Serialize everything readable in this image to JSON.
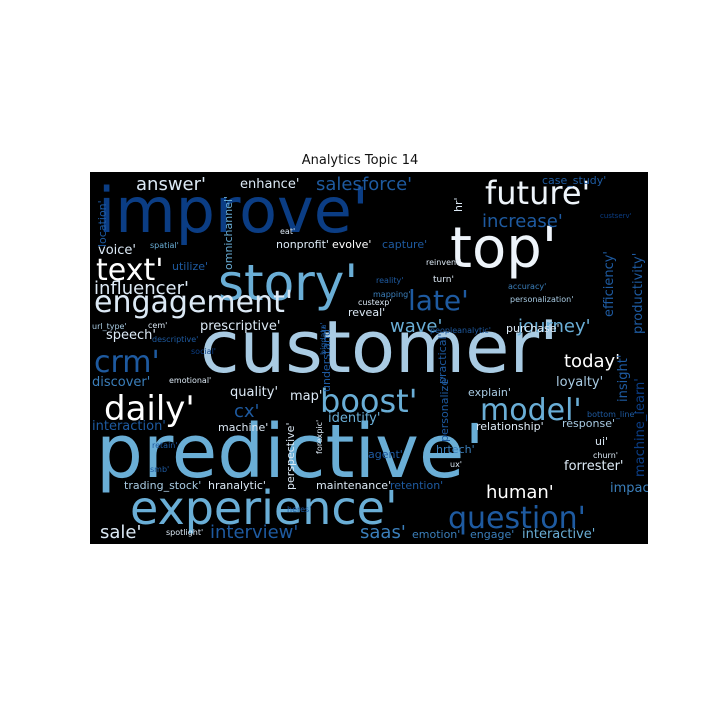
{
  "figure": {
    "title": "Analytics Topic 14"
  },
  "colors": {
    "background": "#000000",
    "palette": [
      "#ffffff",
      "#dce9f5",
      "#a9cbe3",
      "#6aaed6",
      "#3b7fbb",
      "#1e5aa0",
      "#0b3d84"
    ]
  },
  "words": [
    {
      "text": "improve'",
      "size": 62,
      "color": "#0b3d84"
    },
    {
      "text": "customer'",
      "size": 72,
      "color": "#a9cbe3"
    },
    {
      "text": "predictive'",
      "size": 74,
      "color": "#6aaed6"
    },
    {
      "text": "top'",
      "size": 56,
      "color": "#eef4fa"
    },
    {
      "text": "story'",
      "size": 50,
      "color": "#6aaed6"
    },
    {
      "text": "experience'",
      "size": 46,
      "color": "#6aaed6"
    },
    {
      "text": "engagement'",
      "size": 30,
      "color": "#dce9f5"
    },
    {
      "text": "future'",
      "size": 32,
      "color": "#eef4fa"
    },
    {
      "text": "boost'",
      "size": 32,
      "color": "#6aaed6"
    },
    {
      "text": "model'",
      "size": 30,
      "color": "#6aaed6"
    },
    {
      "text": "daily'",
      "size": 34,
      "color": "#ffffff"
    },
    {
      "text": "question'",
      "size": 30,
      "color": "#1e5aa0"
    },
    {
      "text": "text'",
      "size": 30,
      "color": "#ffffff"
    },
    {
      "text": "late'",
      "size": 28,
      "color": "#1e5aa0"
    },
    {
      "text": "crm'",
      "size": 30,
      "color": "#1e5aa0"
    },
    {
      "text": "answer'",
      "size": 18,
      "color": "#dce9f5"
    },
    {
      "text": "salesforce'",
      "size": 18,
      "color": "#1e5aa0"
    },
    {
      "text": "increase'",
      "size": 18,
      "color": "#1e5aa0"
    },
    {
      "text": "influencer'",
      "size": 18,
      "color": "#dce9f5"
    },
    {
      "text": "journey'",
      "size": 18,
      "color": "#6aaed6"
    },
    {
      "text": "wave'",
      "size": 18,
      "color": "#6aaed6"
    },
    {
      "text": "today'",
      "size": 18,
      "color": "#ffffff"
    },
    {
      "text": "human'",
      "size": 18,
      "color": "#ffffff"
    },
    {
      "text": "sale'",
      "size": 18,
      "color": "#dce9f5"
    },
    {
      "text": "interview'",
      "size": 18,
      "color": "#1e5aa0"
    },
    {
      "text": "saas'",
      "size": 18,
      "color": "#3b7fbb"
    },
    {
      "text": "cx'",
      "size": 18,
      "color": "#1e5aa0"
    },
    {
      "text": "efficiency'",
      "size": 13,
      "color": "#1e5aa0"
    },
    {
      "text": "productivity'",
      "size": 13,
      "color": "#1e5aa0"
    },
    {
      "text": "prescriptive'",
      "size": 13,
      "color": "#dce9f5"
    },
    {
      "text": "enhance'",
      "size": 13,
      "color": "#dce9f5"
    },
    {
      "text": "voice'",
      "size": 13,
      "color": "#dce9f5"
    },
    {
      "text": "speech'",
      "size": 13,
      "color": "#dce9f5"
    },
    {
      "text": "discover'",
      "size": 13,
      "color": "#3b7fbb"
    },
    {
      "text": "quality'",
      "size": 13,
      "color": "#dce9f5"
    },
    {
      "text": "map'",
      "size": 13,
      "color": "#dce9f5"
    },
    {
      "text": "identify'",
      "size": 13,
      "color": "#6aaed6"
    },
    {
      "text": "explain'",
      "size": 11,
      "color": "#a9cbe3"
    },
    {
      "text": "loyalty'",
      "size": 13,
      "color": "#a9cbe3"
    },
    {
      "text": "interaction'",
      "size": 13,
      "color": "#1e5aa0"
    },
    {
      "text": "machine'",
      "size": 11,
      "color": "#dce9f5"
    },
    {
      "text": "relationship'",
      "size": 11,
      "color": "#dce9f5"
    },
    {
      "text": "response'",
      "size": 11,
      "color": "#a9cbe3"
    },
    {
      "text": "impact'",
      "size": 13,
      "color": "#3b7fbb"
    },
    {
      "text": "forrester'",
      "size": 13,
      "color": "#dce9f5"
    },
    {
      "text": "interactive'",
      "size": 13,
      "color": "#6aaed6"
    },
    {
      "text": "reveal'",
      "size": 11,
      "color": "#dce9f5"
    },
    {
      "text": "purchase'",
      "size": 11,
      "color": "#dce9f5"
    },
    {
      "text": "evolve'",
      "size": 11,
      "color": "#ffffff"
    },
    {
      "text": "capture'",
      "size": 11,
      "color": "#1e5aa0"
    },
    {
      "text": "nonprofit'",
      "size": 11,
      "color": "#dce9f5"
    },
    {
      "text": "utilize'",
      "size": 11,
      "color": "#1e5aa0"
    },
    {
      "text": "hr'",
      "size": 11,
      "color": "#dce9f5"
    },
    {
      "text": "insight'",
      "size": 13,
      "color": "#1e5aa0"
    },
    {
      "text": "machine_learn'",
      "size": 13,
      "color": "#0b3d84"
    },
    {
      "text": "case_study'",
      "size": 11,
      "color": "#1e5aa0"
    },
    {
      "text": "ui'",
      "size": 11,
      "color": "#dce9f5"
    },
    {
      "text": "hranalytic'",
      "size": 11,
      "color": "#dce9f5"
    },
    {
      "text": "maintenance'",
      "size": 11,
      "color": "#dce9f5"
    },
    {
      "text": "retention'",
      "size": 11,
      "color": "#1e5aa0"
    },
    {
      "text": "trading_stock'",
      "size": 11,
      "color": "#a9cbe3"
    },
    {
      "text": "perspective'",
      "size": 11,
      "color": "#dce9f5"
    },
    {
      "text": "understand'",
      "size": 11,
      "color": "#1e5aa0"
    },
    {
      "text": "omnichannel'",
      "size": 11,
      "color": "#6aaed6"
    },
    {
      "text": "location'",
      "size": 11,
      "color": "#1e5aa0"
    },
    {
      "text": "emotion'",
      "size": 11,
      "color": "#3b7fbb"
    },
    {
      "text": "engage'",
      "size": 11,
      "color": "#3b7fbb"
    },
    {
      "text": "hrtech'",
      "size": 11,
      "color": "#3b7fbb"
    },
    {
      "text": "agent'",
      "size": 11,
      "color": "#1e5aa0"
    },
    {
      "text": "personalize'",
      "size": 11,
      "color": "#1e5aa0"
    },
    {
      "text": "practical'",
      "size": 11,
      "color": "#1e5aa0"
    },
    {
      "text": "turn'",
      "size": 9,
      "color": "#dce9f5"
    },
    {
      "text": "reinvent'",
      "size": 8,
      "color": "#dce9f5"
    },
    {
      "text": "eat'",
      "size": 8,
      "color": "#dce9f5"
    },
    {
      "text": "spatial'",
      "size": 8,
      "color": "#6aaed6"
    },
    {
      "text": "custexp'",
      "size": 8,
      "color": "#dce9f5"
    },
    {
      "text": "mapping'",
      "size": 8,
      "color": "#3b7fbb"
    },
    {
      "text": "reality'",
      "size": 8,
      "color": "#1e5aa0"
    },
    {
      "text": "accuracy'",
      "size": 8,
      "color": "#3b7fbb"
    },
    {
      "text": "personalization'",
      "size": 8,
      "color": "#a9cbe3"
    },
    {
      "text": "peopleanalytic'",
      "size": 8,
      "color": "#1e5aa0"
    },
    {
      "text": "url_type'",
      "size": 8,
      "color": "#a9cbe3"
    },
    {
      "text": "cem'",
      "size": 8,
      "color": "#dce9f5"
    },
    {
      "text": "descriptive'",
      "size": 8,
      "color": "#1e5aa0"
    },
    {
      "text": "emotional'",
      "size": 8,
      "color": "#dce9f5"
    },
    {
      "text": "social'",
      "size": 8,
      "color": "#0b3d84"
    },
    {
      "text": "bigdata'",
      "size": 8,
      "color": "#1e5aa0"
    },
    {
      "text": "forexpic'",
      "size": 8,
      "color": "#dce9f5"
    },
    {
      "text": "retain'",
      "size": 8,
      "color": "#1e5aa0"
    },
    {
      "text": "smb'",
      "size": 8,
      "color": "#1e5aa0"
    },
    {
      "text": "ux'",
      "size": 8,
      "color": "#dce9f5"
    },
    {
      "text": "bottom_line'",
      "size": 8,
      "color": "#1e5aa0"
    },
    {
      "text": "churn'",
      "size": 8,
      "color": "#dce9f5"
    },
    {
      "text": "spotlight'",
      "size": 8,
      "color": "#dce9f5"
    },
    {
      "text": "heres'",
      "size": 8,
      "color": "#1e5aa0"
    },
    {
      "text": "custserv'",
      "size": 7,
      "color": "#0b3d84"
    }
  ]
}
